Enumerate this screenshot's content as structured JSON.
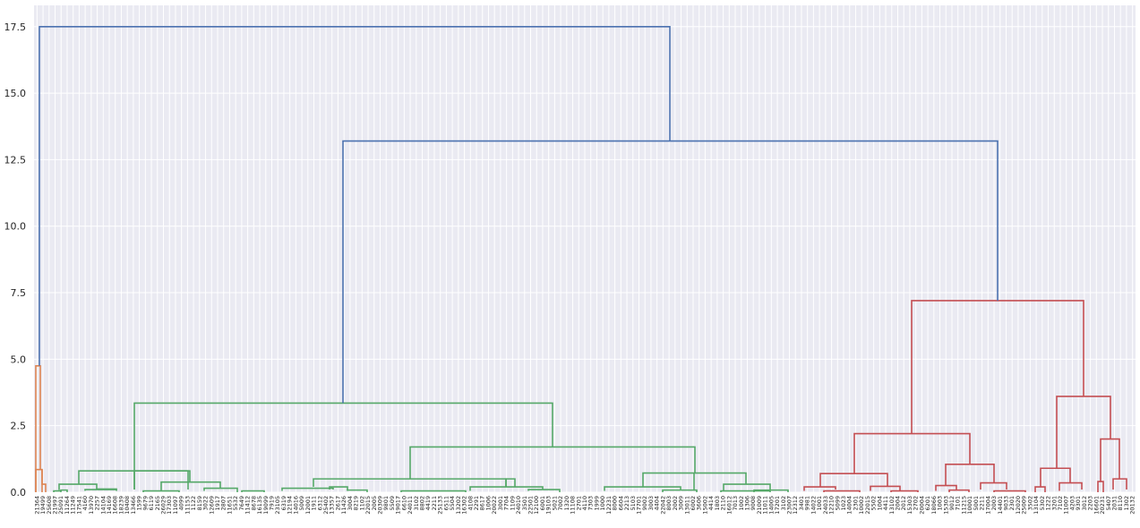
{
  "chart_data": {
    "type": "dendrogram",
    "title": "",
    "xlabel": "",
    "ylabel": "",
    "ylim": [
      0,
      18.3
    ],
    "grid": true,
    "y_ticks": [
      "0.0",
      "2.5",
      "5.0",
      "7.5",
      "10.0",
      "12.5",
      "15.0",
      "17.5"
    ],
    "y_tick_values": [
      0,
      2.5,
      5,
      7.5,
      10,
      12.5,
      15,
      17.5
    ],
    "colors": {
      "background": "#eaeaf2",
      "grid": "#ffffff",
      "above_threshold": "#4c72b0",
      "cluster_1": "#dd8452",
      "cluster_2": "#55a868",
      "cluster_3": "#c44e52"
    },
    "leaf_labels": [
      "21364",
      "19499",
      "25608",
      "21997",
      "25091",
      "11264",
      "11249",
      "17541",
      "4160",
      "13970",
      "2257",
      "14104",
      "14169",
      "16608",
      "18239",
      "10408",
      "13466",
      "1599",
      "9679",
      "6119",
      "2165",
      "26029",
      "17303",
      "11097",
      "4099",
      "11153",
      "1122",
      "8159",
      "3022",
      "12609",
      "1917",
      "2807",
      "11651",
      "5532",
      "7649",
      "11412",
      "8678",
      "16135",
      "19099",
      "7919",
      "23105",
      "6319",
      "12194",
      "14016",
      "5009",
      "12001",
      "1911",
      "6312",
      "25402",
      "13357",
      "2617",
      "11426",
      "3004",
      "8219",
      "1102",
      "22015",
      "2005",
      "20309",
      "9801",
      "5509",
      "19017",
      "6610",
      "24011",
      "3102",
      "8802",
      "4419",
      "2211",
      "25133",
      "6511",
      "5504",
      "13202",
      "16302",
      "4108",
      "2291",
      "8617",
      "1006",
      "20022",
      "3001",
      "7704",
      "1109",
      "24010",
      "3501",
      "22501",
      "12100",
      "6001",
      "19103",
      "5021",
      "7002",
      "1320",
      "11108",
      "2701",
      "4110",
      "7303",
      "1999",
      "1000",
      "12231",
      "8000",
      "6604",
      "2213",
      "5103",
      "17701",
      "9002",
      "3003",
      "4404",
      "22042",
      "8003",
      "2002",
      "3009",
      "13011",
      "6002",
      "3606",
      "15002",
      "4414",
      "1803",
      "2110",
      "16012",
      "7013",
      "1002",
      "1306",
      "9008",
      "21009",
      "11011",
      "14005",
      "17201",
      "3102",
      "23007",
      "12312",
      "3401",
      "9981",
      "14022",
      "1001",
      "24033",
      "12210",
      "5099",
      "1023",
      "14004",
      "2301",
      "10002",
      "22015",
      "5502",
      "1004",
      "4411",
      "13102",
      "2004",
      "2012",
      "15303",
      "2702",
      "20004",
      "6201",
      "18066",
      "1003",
      "15303",
      "9012",
      "7101",
      "11215",
      "10001",
      "5001",
      "2211",
      "17004",
      "2003",
      "14401",
      "9033",
      "2301",
      "12020",
      "25009",
      "3502",
      "13104",
      "5302",
      "1222",
      "3201",
      "7102",
      "11007",
      "4203",
      "9301",
      "3012",
      "2203",
      "16601",
      "20231",
      "5407",
      "2031",
      "8110",
      "1302",
      "20132"
    ],
    "links": [
      {
        "h": 17.5
      },
      {
        "h": 13.2
      },
      {
        "h": 7.2
      },
      {
        "h": 4.75
      },
      {
        "h": 3.6
      },
      {
        "h": 3.35
      },
      {
        "h": 2.2
      },
      {
        "h": 2.0
      },
      {
        "h": 1.7
      },
      {
        "h": 1.05
      },
      {
        "h": 0.9
      },
      {
        "h": 0.8
      },
      {
        "h": 0.72
      },
      {
        "h": 0.7
      },
      {
        "h": 0.55
      },
      {
        "h": 0.5
      }
    ]
  }
}
